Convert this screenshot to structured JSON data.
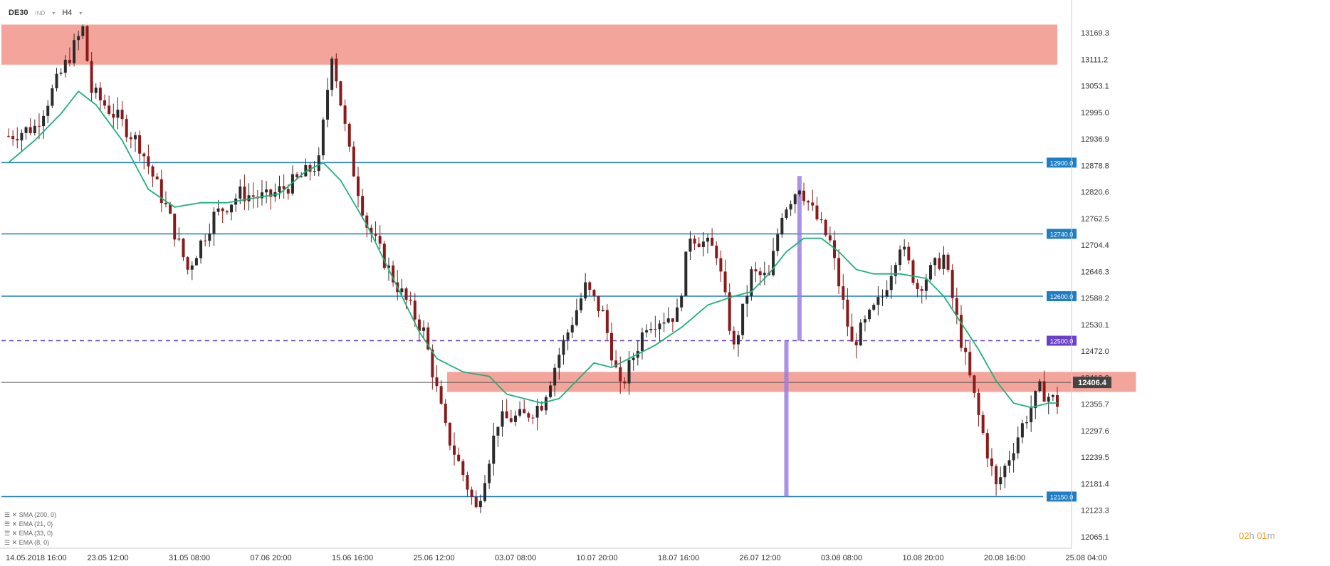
{
  "header": {
    "symbol": "DE30",
    "type": "IND",
    "timeframe": "H4"
  },
  "indicators": [
    {
      "label": "SMA (200, 0)"
    },
    {
      "label": "EMA (21, 0)"
    },
    {
      "label": "EMA (33, 0)"
    },
    {
      "label": "EMA (8, 0)"
    }
  ],
  "countdown": {
    "h": "02",
    "hl": "h",
    "m": "01",
    "ml": "m"
  },
  "colors": {
    "up": "#2b2b2b",
    "down": "#8b1a1a",
    "ema": "#1fb07c",
    "hline": "#1f7dc4",
    "purple": "#6a3fc9",
    "zone": "#f1948a",
    "bg": "#ffffff"
  },
  "chart_data": {
    "type": "candlestick",
    "ylim": [
      12050,
      13230
    ],
    "y_ticks": [
      "13169.3",
      "13111.2",
      "13053.1",
      "12995.0",
      "12936.9",
      "12878.8",
      "12820.6",
      "12762.5",
      "12704.4",
      "12646.3",
      "12588.2",
      "12530.1",
      "12472.0",
      "12413.9",
      "12355.7",
      "12297.6",
      "12239.5",
      "12181.4",
      "12123.3",
      "12065.1"
    ],
    "x_labels": [
      "14.05.2018  16:00",
      "23.05  12:00",
      "31.05  08:00",
      "07.06  20:00",
      "15.06  16:00",
      "25.06  12:00",
      "03.07  08:00",
      "10.07  20:00",
      "18.07  16:00",
      "26.07  12:00",
      "03.08  08:00",
      "10.08  20:00",
      "20.08  16:00",
      "25.08  04:00"
    ],
    "levels": [
      {
        "price": 12900.0,
        "label": "12900.0",
        "style": "solid"
      },
      {
        "price": 12740.0,
        "label": "12740.0",
        "style": "solid"
      },
      {
        "price": 12600.0,
        "label": "12600.0",
        "style": "solid"
      },
      {
        "price": 12500.0,
        "label": "12500.0",
        "style": "dashed"
      },
      {
        "price": 12150.0,
        "label": "12150.0",
        "style": "solid"
      }
    ],
    "current_price": {
      "price": 12406.4,
      "label": "12406.4"
    },
    "zones": [
      {
        "from_idx": 0,
        "to_idx": 240,
        "top": 13210,
        "bottom": 13120
      },
      {
        "from_idx": 102,
        "to_idx": 258,
        "top": 12430,
        "bottom": 12385
      }
    ],
    "purple_bars": [
      {
        "idx": 178,
        "top": 12500,
        "bottom": 12150
      },
      {
        "idx": 181,
        "top": 12870,
        "bottom": 12500
      }
    ],
    "close_points": [
      [
        0,
        12960
      ],
      [
        6,
        12980
      ],
      [
        12,
        13100
      ],
      [
        17,
        13200
      ],
      [
        19,
        13060
      ],
      [
        25,
        13000
      ],
      [
        30,
        12940
      ],
      [
        36,
        12800
      ],
      [
        41,
        12660
      ],
      [
        47,
        12780
      ],
      [
        53,
        12830
      ],
      [
        59,
        12820
      ],
      [
        66,
        12860
      ],
      [
        71,
        12900
      ],
      [
        74,
        13150
      ],
      [
        78,
        12920
      ],
      [
        82,
        12760
      ],
      [
        88,
        12640
      ],
      [
        95,
        12520
      ],
      [
        100,
        12300
      ],
      [
        104,
        12200
      ],
      [
        107,
        12120
      ],
      [
        112,
        12320
      ],
      [
        118,
        12330
      ],
      [
        122,
        12360
      ],
      [
        126,
        12470
      ],
      [
        132,
        12620
      ],
      [
        136,
        12560
      ],
      [
        140,
        12390
      ],
      [
        146,
        12540
      ],
      [
        153,
        12560
      ],
      [
        156,
        12740
      ],
      [
        162,
        12700
      ],
      [
        166,
        12480
      ],
      [
        170,
        12650
      ],
      [
        174,
        12640
      ],
      [
        177,
        12790
      ],
      [
        181,
        12850
      ],
      [
        184,
        12790
      ],
      [
        188,
        12720
      ],
      [
        193,
        12490
      ],
      [
        200,
        12600
      ],
      [
        204,
        12720
      ],
      [
        208,
        12620
      ],
      [
        214,
        12690
      ],
      [
        218,
        12500
      ],
      [
        222,
        12330
      ],
      [
        226,
        12170
      ],
      [
        232,
        12310
      ],
      [
        236,
        12390
      ],
      [
        240,
        12360
      ]
    ],
    "ema_points": [
      [
        0,
        12900
      ],
      [
        6,
        12950
      ],
      [
        12,
        13010
      ],
      [
        16,
        13060
      ],
      [
        20,
        13030
      ],
      [
        26,
        12950
      ],
      [
        32,
        12840
      ],
      [
        38,
        12800
      ],
      [
        44,
        12810
      ],
      [
        50,
        12810
      ],
      [
        56,
        12820
      ],
      [
        62,
        12830
      ],
      [
        68,
        12880
      ],
      [
        72,
        12900
      ],
      [
        76,
        12860
      ],
      [
        82,
        12760
      ],
      [
        88,
        12640
      ],
      [
        94,
        12520
      ],
      [
        98,
        12460
      ],
      [
        104,
        12430
      ],
      [
        110,
        12420
      ],
      [
        114,
        12380
      ],
      [
        118,
        12370
      ],
      [
        122,
        12360
      ],
      [
        126,
        12370
      ],
      [
        130,
        12410
      ],
      [
        134,
        12450
      ],
      [
        138,
        12440
      ],
      [
        142,
        12460
      ],
      [
        148,
        12490
      ],
      [
        154,
        12530
      ],
      [
        160,
        12580
      ],
      [
        166,
        12600
      ],
      [
        170,
        12610
      ],
      [
        174,
        12650
      ],
      [
        178,
        12700
      ],
      [
        182,
        12730
      ],
      [
        186,
        12730
      ],
      [
        190,
        12700
      ],
      [
        194,
        12660
      ],
      [
        198,
        12650
      ],
      [
        204,
        12650
      ],
      [
        210,
        12640
      ],
      [
        214,
        12600
      ],
      [
        218,
        12540
      ],
      [
        222,
        12480
      ],
      [
        226,
        12410
      ],
      [
        230,
        12360
      ],
      [
        234,
        12350
      ],
      [
        238,
        12360
      ],
      [
        240,
        12360
      ]
    ],
    "n_candles": 241
  }
}
